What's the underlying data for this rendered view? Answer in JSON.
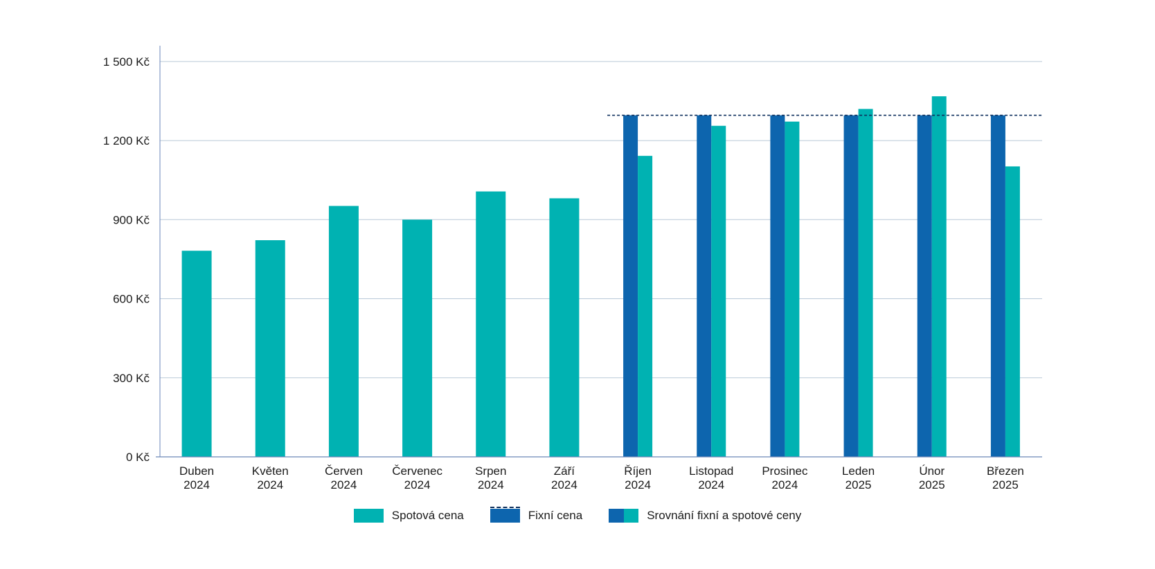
{
  "chart_data": {
    "type": "bar",
    "title": "",
    "xlabel": "",
    "ylabel": "",
    "ylim": [
      0,
      1560
    ],
    "y_ticks": [
      0,
      300,
      600,
      900,
      1200,
      1500
    ],
    "y_tick_labels": [
      "0 Kč",
      "300 Kč",
      "600 Kč",
      "900 Kč",
      "1 200 Kč",
      "1 500 Kč"
    ],
    "grid": true,
    "legend_position": "bottom-center",
    "categories": [
      [
        "Duben",
        "2024"
      ],
      [
        "Květen",
        "2024"
      ],
      [
        "Červen",
        "2024"
      ],
      [
        "Červenec",
        "2024"
      ],
      [
        "Srpen",
        "2024"
      ],
      [
        "Září",
        "2024"
      ],
      [
        "Říjen",
        "2024"
      ],
      [
        "Listopad",
        "2024"
      ],
      [
        "Prosinec",
        "2024"
      ],
      [
        "Leden",
        "2025"
      ],
      [
        "Únor",
        "2025"
      ],
      [
        "Březen",
        "2025"
      ]
    ],
    "series": [
      {
        "name": "Spotová cena",
        "color": "#00b2b2",
        "values": [
          782,
          822,
          952,
          900,
          1007,
          981,
          1142,
          1256,
          1272,
          1320,
          1368,
          1102
        ]
      },
      {
        "name": "Fixní cena",
        "color": "#0d65ae",
        "values": [
          null,
          null,
          null,
          null,
          null,
          null,
          1296,
          1296,
          1296,
          1296,
          1296,
          1296
        ]
      }
    ],
    "fixed_line": {
      "value": 1296,
      "from_index": 6,
      "to_index": 11,
      "color": "#0d2f5c",
      "style": "dashed"
    },
    "legend": [
      {
        "label": "Spotová cena",
        "kind": "spot"
      },
      {
        "label": "Fixní cena",
        "kind": "fixed"
      },
      {
        "label": "Srovnání fixní a spotové ceny",
        "kind": "compare"
      }
    ]
  },
  "colors": {
    "spot": "#00b2b2",
    "fixed": "#0d65ae",
    "fixed_line": "#0d2f5c",
    "grid": "#b9c9d8",
    "axis": "#6b86b8"
  }
}
